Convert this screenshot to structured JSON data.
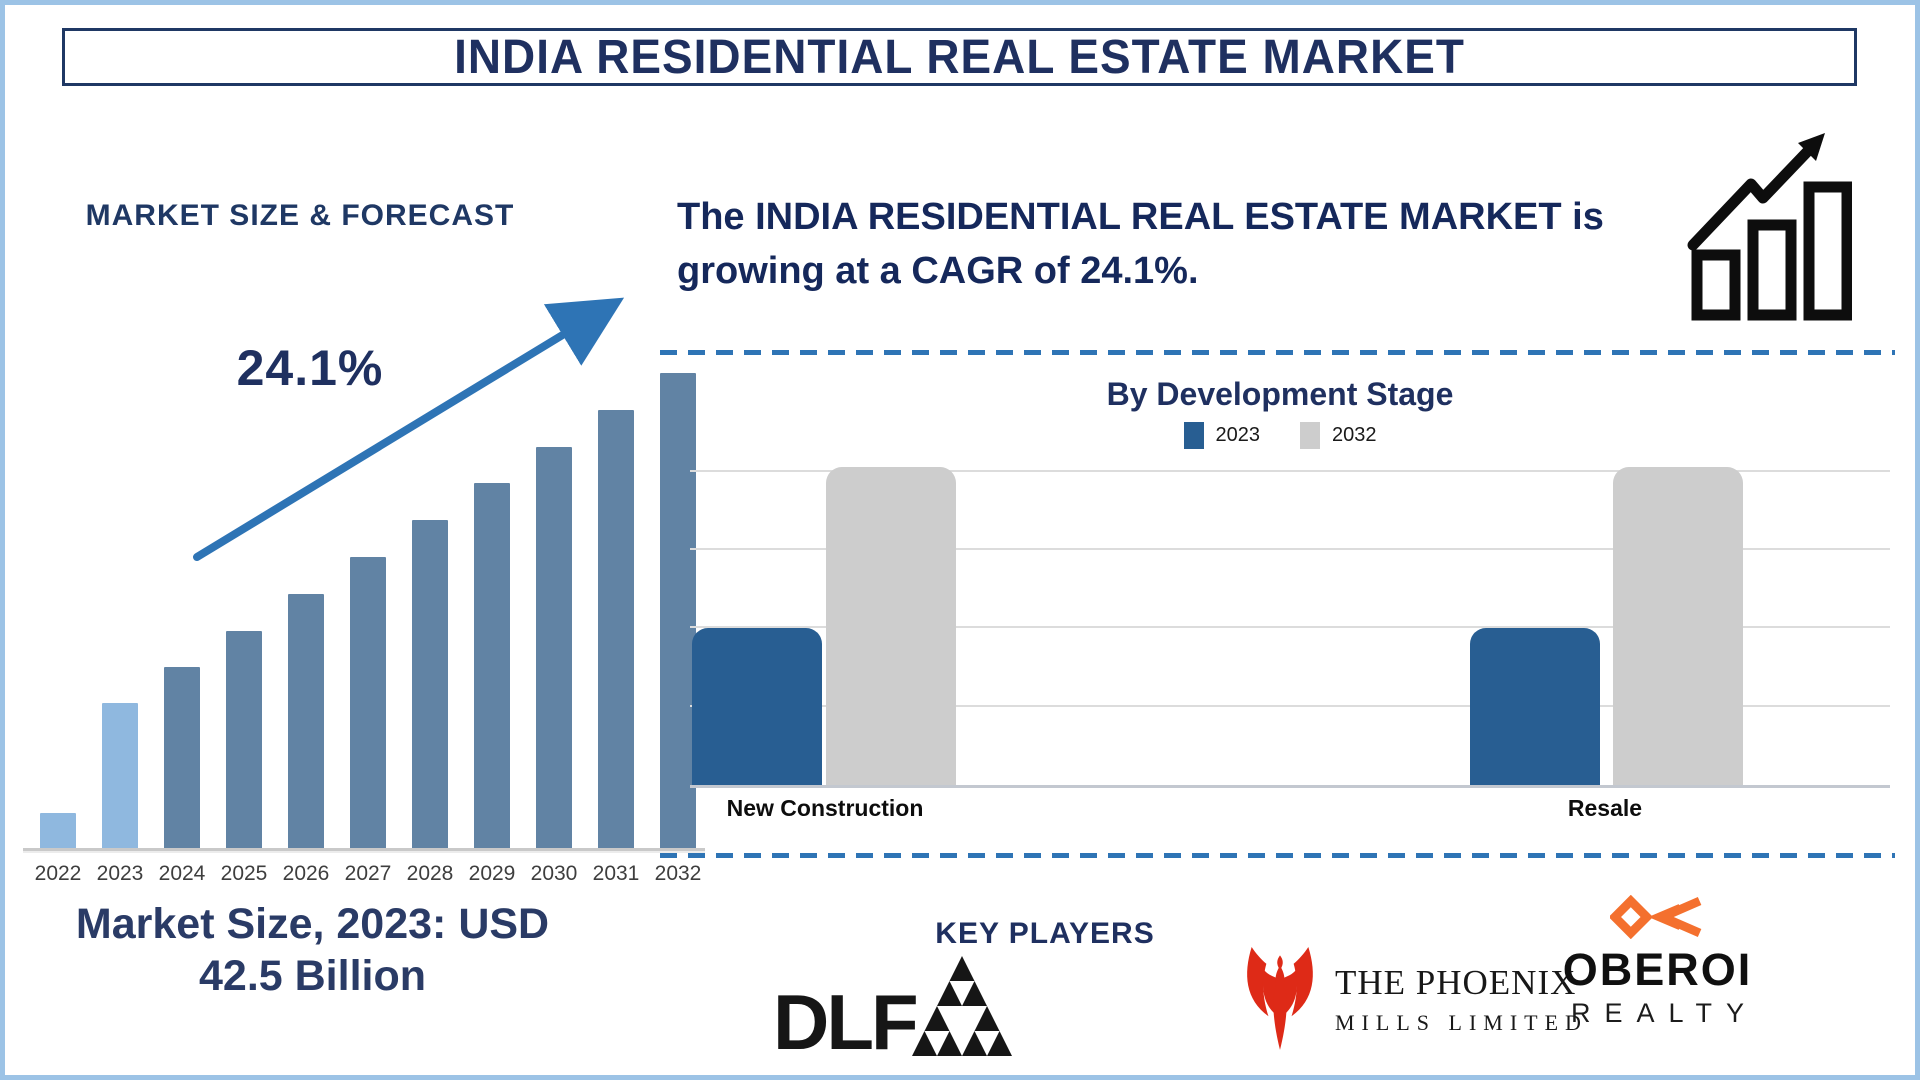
{
  "frame": {
    "title": "INDIA RESIDENTIAL REAL ESTATE MARKET",
    "border_color": "#9CC3E6",
    "title_border_color": "#1F3864"
  },
  "left_panel": {
    "heading": "MARKET SIZE & FORECAST",
    "cagr_label": "24.1%",
    "caption_line1": "Market Size, 2023: USD",
    "caption_line2": "42.5 Billion",
    "arrow_color": "#2E74B5"
  },
  "right_panel": {
    "growth_text": "The INDIA RESIDENTIAL REAL ESTATE MARKET is growing at a CAGR of 24.1%.",
    "growth_icon": "bar-chart-rising-arrow-icon"
  },
  "key_players": {
    "heading": "KEY PLAYERS",
    "companies": [
      "DLF",
      "The Phoenix Mills Limited",
      "Oberoi Realty"
    ],
    "dlf_text": "DLF",
    "phoenix_line1": "THE PHOENIX",
    "phoenix_line2": "MILLS LIMITED",
    "oberoi_line1": "OBEROI",
    "oberoi_line2": "REALTY",
    "phoenix_red": "#DE2A17",
    "oberoi_orange": "#F4702E",
    "logo_black": "#161616"
  },
  "colors": {
    "navy_heading": "#1F3060",
    "dashed_divider": "#2E74B5",
    "axis_gray": "#C9C9C9",
    "gridline_gray": "#DCDCDC"
  },
  "chart_data": [
    {
      "id": "market-size-forecast",
      "type": "bar",
      "title": "MARKET SIZE & FORECAST",
      "categories": [
        "2022",
        "2023",
        "2024",
        "2025",
        "2026",
        "2027",
        "2028",
        "2029",
        "2030",
        "2031",
        "2032"
      ],
      "values": [
        37,
        147,
        183,
        219,
        256,
        293,
        330,
        367,
        403,
        440,
        477
      ],
      "units": "relative bar height, px (stylized chart, no y-axis labels shown)",
      "annotation": "24.1%",
      "highlight_color": "#8FB8DF",
      "highlight_note": "2022 and 2023 bars are light blue; 2024-2032 are steel blue",
      "bar_color": "#6183A4",
      "xlabel": "",
      "ylabel": "",
      "grid": false,
      "legend": false
    },
    {
      "id": "by-development-stage",
      "type": "bar",
      "title": "By Development Stage",
      "categories": [
        "New Construction",
        "Resale"
      ],
      "series": [
        {
          "name": "2023",
          "color": "#285E92",
          "values": [
            2.0,
            2.0
          ]
        },
        {
          "name": "2032",
          "color": "#CDCDCD",
          "values": [
            4.07,
            4.07
          ]
        }
      ],
      "units": "relative (1 unit = one gridline spacing; no y-axis labels shown)",
      "ylim": [
        0,
        4.15
      ],
      "grid": true,
      "legend_position": "top-center"
    }
  ]
}
